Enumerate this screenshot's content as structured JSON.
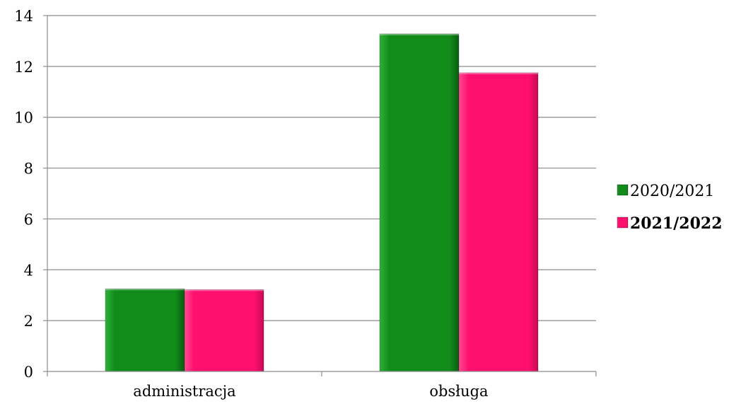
{
  "chart_data": {
    "type": "bar",
    "categories": [
      "administracja",
      "obsługa"
    ],
    "series": [
      {
        "name": "2020/2021",
        "values": [
          3.25,
          13.28
        ],
        "color": "#118C1B",
        "legend_bold": false
      },
      {
        "name": "2021/2022",
        "values": [
          3.22,
          11.75
        ],
        "color": "#FF0F6E",
        "legend_bold": true
      }
    ],
    "ylim": [
      0,
      14
    ],
    "y_ticks": [
      "0",
      "2",
      "4",
      "6",
      "8",
      "10",
      "12",
      "14"
    ],
    "grid": true,
    "legend_position": "right"
  }
}
